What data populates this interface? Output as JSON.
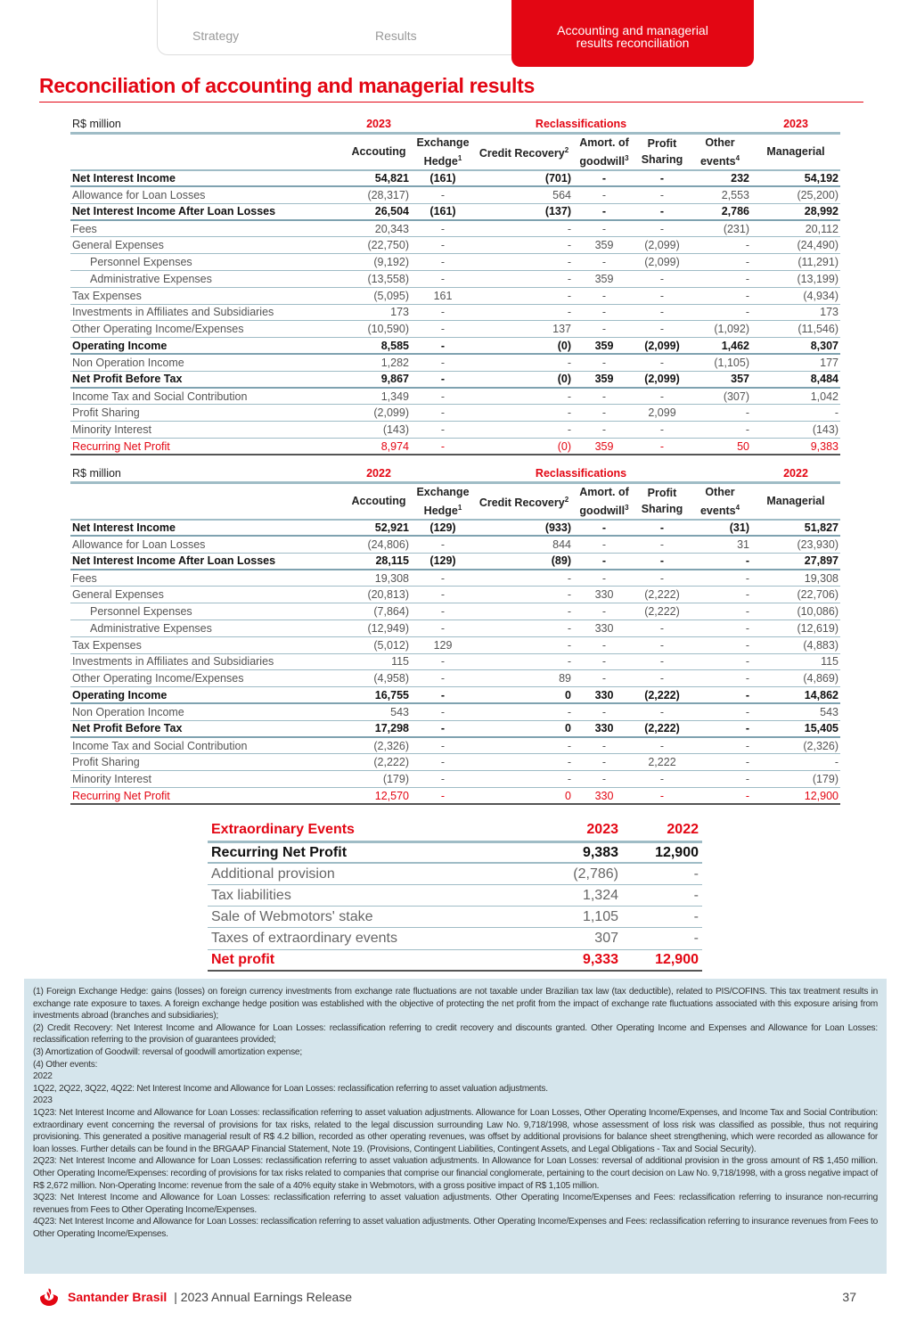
{
  "nav": {
    "tabs": [
      "Strategy",
      "Results"
    ],
    "active_tab": "Accounting and managerial results reconciliation"
  },
  "title": "Reconciliation of accounting and managerial results",
  "columns": {
    "unit": "R$ million",
    "reclass": "Reclassifications",
    "accounting": "Accouting",
    "hedge": "Exchange Hedge",
    "hedge_sup": "1",
    "credit": "Credit Recovery",
    "credit_sup": "2",
    "amort": "Amort. of goodwill",
    "amort_sup": "3",
    "profit": "Profit Sharing",
    "other": "Other events",
    "other_sup": "4",
    "managerial": "Managerial"
  },
  "tables": [
    {
      "year": "2023",
      "rows": [
        [
          "Net Interest Income",
          "54,821",
          "(161)",
          "(701)",
          "-",
          "-",
          "232",
          "54,192",
          "bold"
        ],
        [
          "Allowance for Loan Losses",
          "(28,317)",
          "-",
          "564",
          "-",
          "-",
          "2,553",
          "(25,200)",
          ""
        ],
        [
          "Net Interest Income After Loan Losses",
          "26,504",
          "(161)",
          "(137)",
          "-",
          "-",
          "2,786",
          "28,992",
          "bold"
        ],
        [
          "Fees",
          "20,343",
          "-",
          "-",
          "-",
          "-",
          "(231)",
          "20,112",
          ""
        ],
        [
          "General Expenses",
          "(22,750)",
          "-",
          "-",
          "359",
          "(2,099)",
          "-",
          "(24,490)",
          ""
        ],
        [
          "Personnel Expenses",
          "(9,192)",
          "-",
          "-",
          "-",
          "(2,099)",
          "-",
          "(11,291)",
          "indent"
        ],
        [
          "Administrative Expenses",
          "(13,558)",
          "-",
          "-",
          "359",
          "-",
          "-",
          "(13,199)",
          "indent"
        ],
        [
          "Tax Expenses",
          "(5,095)",
          "161",
          "-",
          "-",
          "-",
          "-",
          "(4,934)",
          ""
        ],
        [
          "Investments in Affiliates and Subsidiaries",
          "173",
          "-",
          "-",
          "-",
          "-",
          "-",
          "173",
          ""
        ],
        [
          "Other Operating Income/Expenses",
          "(10,590)",
          "-",
          "137",
          "-",
          "-",
          "(1,092)",
          "(11,546)",
          ""
        ],
        [
          "Operating Income",
          "8,585",
          "-",
          "(0)",
          "359",
          "(2,099)",
          "1,462",
          "8,307",
          "bold"
        ],
        [
          "Non Operation Income",
          "1,282",
          "-",
          "-",
          "-",
          "-",
          "(1,105)",
          "177",
          ""
        ],
        [
          "Net Profit Before Tax",
          "9,867",
          "-",
          "(0)",
          "359",
          "(2,099)",
          "357",
          "8,484",
          "bold"
        ],
        [
          "Income Tax and Social Contribution",
          "1,349",
          "-",
          "-",
          "-",
          "-",
          "(307)",
          "1,042",
          ""
        ],
        [
          "Profit Sharing",
          "(2,099)",
          "-",
          "-",
          "-",
          "2,099",
          "-",
          "-",
          ""
        ],
        [
          "Minority Interest",
          "(143)",
          "-",
          "-",
          "-",
          "-",
          "-",
          "(143)",
          ""
        ],
        [
          "Recurring Net Profit",
          "8,974",
          "-",
          "(0)",
          "359",
          "-",
          "50",
          "9,383",
          "red"
        ]
      ]
    },
    {
      "year": "2022",
      "rows": [
        [
          "Net Interest Income",
          "52,921",
          "(129)",
          "(933)",
          "-",
          "-",
          "(31)",
          "51,827",
          "bold"
        ],
        [
          "Allowance for Loan Losses",
          "(24,806)",
          "-",
          "844",
          "-",
          "-",
          "31",
          "(23,930)",
          ""
        ],
        [
          "Net Interest Income After Loan Losses",
          "28,115",
          "(129)",
          "(89)",
          "-",
          "-",
          "-",
          "27,897",
          "bold"
        ],
        [
          "Fees",
          "19,308",
          "-",
          "-",
          "-",
          "-",
          "-",
          "19,308",
          ""
        ],
        [
          "General Expenses",
          "(20,813)",
          "-",
          "-",
          "330",
          "(2,222)",
          "-",
          "(22,706)",
          ""
        ],
        [
          "Personnel Expenses",
          "(7,864)",
          "-",
          "-",
          "-",
          "(2,222)",
          "-",
          "(10,086)",
          "indent"
        ],
        [
          "Administrative Expenses",
          "(12,949)",
          "-",
          "-",
          "330",
          "-",
          "-",
          "(12,619)",
          "indent"
        ],
        [
          "Tax Expenses",
          "(5,012)",
          "129",
          "-",
          "-",
          "-",
          "-",
          "(4,883)",
          ""
        ],
        [
          "Investments in Affiliates and Subsidiaries",
          "115",
          "-",
          "-",
          "-",
          "-",
          "-",
          "115",
          ""
        ],
        [
          "Other Operating Income/Expenses",
          "(4,958)",
          "-",
          "89",
          "-",
          "-",
          "-",
          "(4,869)",
          ""
        ],
        [
          "Operating Income",
          "16,755",
          "-",
          "0",
          "330",
          "(2,222)",
          "-",
          "14,862",
          "bold"
        ],
        [
          "Non Operation Income",
          "543",
          "-",
          "-",
          "-",
          "-",
          "-",
          "543",
          ""
        ],
        [
          "Net Profit Before Tax",
          "17,298",
          "-",
          "0",
          "330",
          "(2,222)",
          "-",
          "15,405",
          "bold"
        ],
        [
          "Income Tax and Social Contribution",
          "(2,326)",
          "-",
          "-",
          "-",
          "-",
          "-",
          "(2,326)",
          ""
        ],
        [
          "Profit Sharing",
          "(2,222)",
          "-",
          "-",
          "-",
          "2,222",
          "-",
          "-",
          ""
        ],
        [
          "Minority Interest",
          "(179)",
          "-",
          "-",
          "-",
          "-",
          "-",
          "(179)",
          ""
        ],
        [
          "Recurring Net Profit",
          "12,570",
          "-",
          "0",
          "330",
          "-",
          "-",
          "12,900",
          "red"
        ]
      ]
    }
  ],
  "extraordinary": {
    "header": [
      "Extraordinary Events",
      "2023",
      "2022"
    ],
    "rows": [
      [
        "Recurring Net Profit",
        "9,383",
        "12,900",
        "b"
      ],
      [
        "Additional provision",
        "(2,786)",
        "-",
        ""
      ],
      [
        "Tax liabilities",
        "1,324",
        "-",
        ""
      ],
      [
        "Sale of Webmotors' stake",
        "1,105",
        "-",
        ""
      ],
      [
        "Taxes of extraordinary events",
        "307",
        "-",
        ""
      ],
      [
        "Net profit",
        "9,333",
        "12,900",
        "n"
      ]
    ]
  },
  "notes": [
    "(1)  Foreign Exchange Hedge: gains (losses) on foreign currency investments from exchange rate fluctuations are not taxable under Brazilian tax law (tax deductible), related to PIS/COFINS. This tax treatment results in exchange rate exposure to taxes. A foreign exchange hedge position was established with the objective of protecting the net profit from the impact of exchange rate fluctuations associated with this exposure arising from investments abroad (branches and subsidiaries);",
    "(2)  Credit Recovery: Net Interest Income and Allowance for Loan Losses: reclassification referring to credit recovery and discounts granted. Other Operating Income and Expenses and Allowance for Loan Losses: reclassification referring to the provision of guarantees provided;",
    "(3)  Amortization of Goodwill: reversal of goodwill amortization expense;",
    "(4)  Other events:",
    "2022",
    "1Q22, 2Q22, 3Q22, 4Q22: Net Interest Income and Allowance for Loan Losses: reclassification referring to asset valuation adjustments.",
    "2023",
    "1Q23: Net Interest Income and Allowance for Loan Losses: reclassification referring to asset valuation adjustments. Allowance for Loan Losses, Other Operating Income/Expenses, and Income Tax and Social Contribution: extraordinary event concerning the reversal of provisions for tax risks, related to the legal discussion surrounding Law No. 9,718/1998, whose assessment of loss risk was classified as possible, thus not requiring provisioning. This generated a positive managerial result of R$ 4.2 billion, recorded as other operating revenues, was offset by additional provisions for balance sheet strengthening, which were recorded as allowance for loan losses. Further details can be found in the BRGAAP Financial Statement, Note 19. (Provisions, Contingent Liabilities, Contingent Assets, and Legal Obligations - Tax and Social Security).",
    "2Q23: Net Interest Income and Allowance for Loan Losses: reclassification referring to asset valuation adjustments. In Allowance for Loan Losses: reversal of additional provision in the gross amount of R$ 1,450 million. Other Operating Income/Expenses: recording of provisions for tax risks related to companies that comprise our financial conglomerate, pertaining to the court decision on Law No. 9,718/1998, with a gross negative impact of R$ 2,672 million. Non-Operating Income: revenue from the sale of a 40% equity stake in Webmotors, with a gross positive impact of R$ 1,105 million.",
    "3Q23: Net Interest Income and Allowance for Loan Losses: reclassification referring to asset valuation adjustments. Other Operating Income/Expenses and Fees: reclassification referring to insurance non-recurring revenues from Fees to Other Operating Income/Expenses.",
    "4Q23: Net Interest Income and Allowance for Loan Losses: reclassification referring to asset valuation adjustments. Other Operating Income/Expenses and Fees: reclassification referring to insurance revenues from Fees to Other Operating Income/Expenses."
  ],
  "footer": {
    "brand": "Santander Brasil",
    "doc": "| 2023 Annual Earnings Release",
    "page": "37"
  },
  "colors": {
    "accent": "#e30613",
    "notes_bg": "#d5e5ec",
    "rule": "#9fbcc6"
  },
  "icons": {
    "logo": "santander-flame-icon"
  }
}
